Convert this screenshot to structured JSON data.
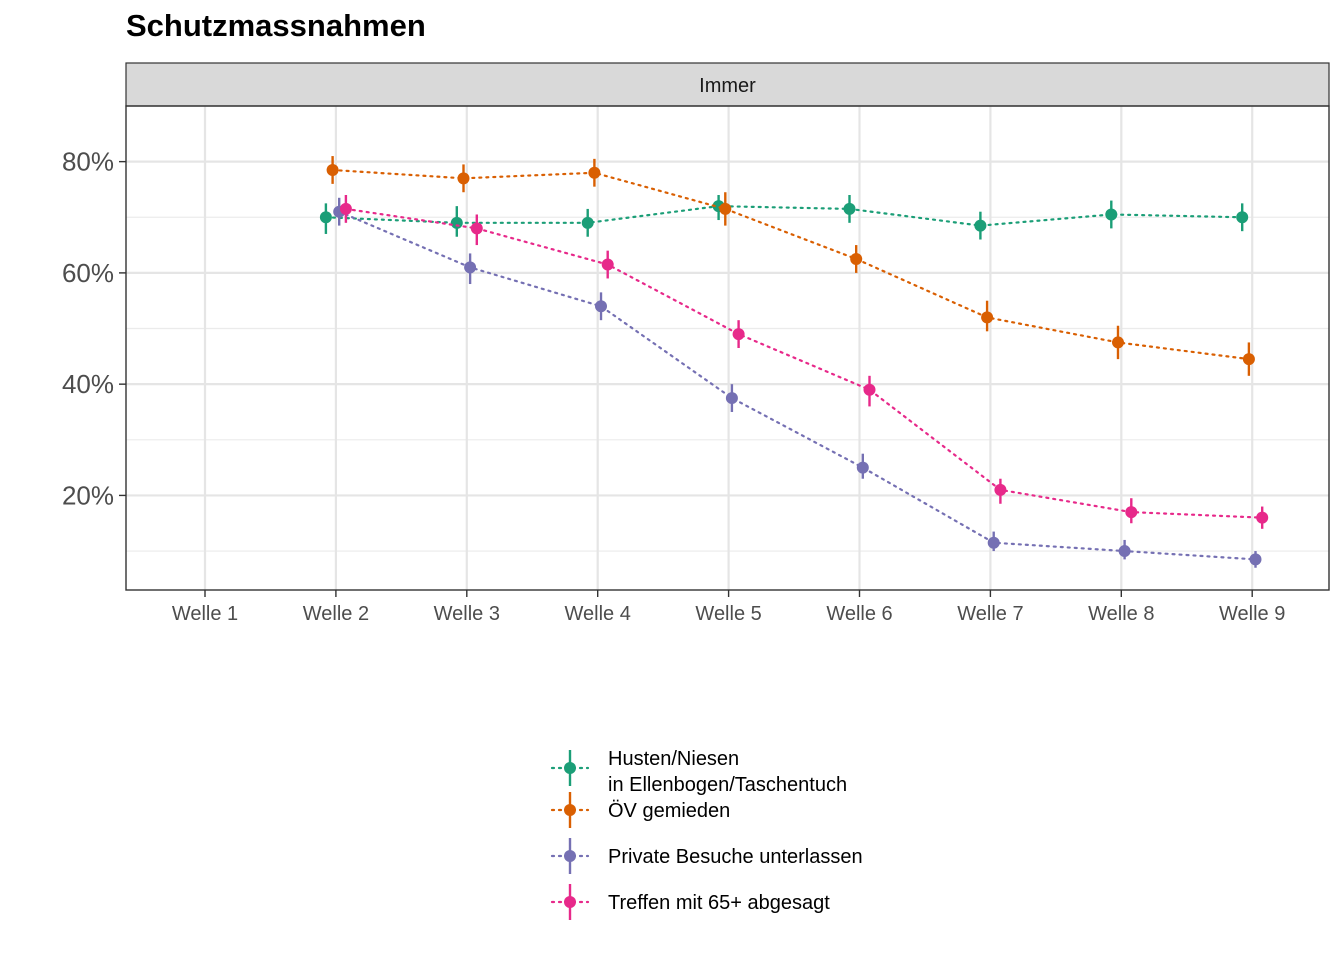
{
  "chart_data": {
    "type": "line",
    "title": "Schutzmassnahmen",
    "facet_label": "Immer",
    "categories": [
      "Welle 1",
      "Welle 2",
      "Welle 3",
      "Welle 4",
      "Welle 5",
      "Welle 6",
      "Welle 7",
      "Welle 8",
      "Welle 9"
    ],
    "y_ticks": [
      20,
      40,
      60,
      80
    ],
    "y_tick_labels": [
      "20%",
      "40%",
      "60%",
      "80%"
    ],
    "ylim": [
      3,
      90
    ],
    "grid": true,
    "legend_position": "bottom",
    "series": [
      {
        "name": "Husten/Niesen\nin Ellenbogen/Taschentuch",
        "color": "#1b9e77",
        "offset": -1,
        "values": [
          null,
          70,
          69,
          69,
          72,
          71.5,
          68.5,
          70.5,
          70
        ],
        "lower": [
          null,
          67,
          66.5,
          66.5,
          69.5,
          69,
          66,
          68,
          67.5
        ],
        "upper": [
          null,
          72.5,
          72,
          71.5,
          74,
          74,
          71,
          73,
          72.5
        ]
      },
      {
        "name": "ÖV gemieden",
        "color": "#d95f02",
        "offset": -0.33,
        "values": [
          null,
          78.5,
          77,
          78,
          71.5,
          62.5,
          52,
          47.5,
          44.5
        ],
        "lower": [
          null,
          76,
          74.5,
          75.5,
          68.5,
          60,
          49.5,
          44.5,
          41.5
        ],
        "upper": [
          null,
          81,
          79.5,
          80.5,
          74.5,
          65,
          55,
          50.5,
          47.5
        ]
      },
      {
        "name": "Private Besuche unterlassen",
        "color": "#7570b3",
        "offset": 0.33,
        "values": [
          null,
          71,
          61,
          54,
          37.5,
          25,
          11.5,
          10,
          8.5
        ],
        "lower": [
          null,
          68.5,
          58,
          51.5,
          35,
          23,
          10,
          8.5,
          7
        ],
        "upper": [
          null,
          73.5,
          63.5,
          56.5,
          40,
          27.5,
          13.5,
          12,
          10
        ]
      },
      {
        "name": "Treffen mit 65+ abgesagt",
        "color": "#e7298a",
        "offset": 1,
        "values": [
          null,
          71.5,
          68,
          61.5,
          49,
          39,
          21,
          17,
          16
        ],
        "lower": [
          null,
          69,
          65,
          59,
          46.5,
          36,
          18.5,
          15,
          14
        ],
        "upper": [
          null,
          74,
          70.5,
          64,
          51.5,
          41.5,
          23,
          19.5,
          18
        ]
      }
    ]
  }
}
